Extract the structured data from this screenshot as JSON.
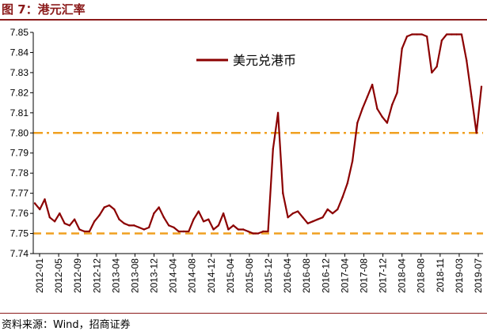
{
  "figure": {
    "title": "图 7：港元汇率",
    "source": "资料来源：Wind，招商证券"
  },
  "colors": {
    "series": "#8B0000",
    "ref_line": "#F0A020",
    "title": "#8B1A1A"
  },
  "chart_data": {
    "type": "line",
    "title": "",
    "xlabel": "",
    "ylabel": "",
    "ylim": [
      7.74,
      7.85
    ],
    "yticks": [
      "7.85",
      "7.84",
      "7.83",
      "7.82",
      "7.81",
      "7.80",
      "7.79",
      "7.78",
      "7.77",
      "7.76",
      "7.75",
      "7.74"
    ],
    "xticks": [
      "2012-01",
      "2012-05",
      "2012-09",
      "2012-12",
      "2013-04",
      "2013-08",
      "2013-12",
      "2014-04",
      "2014-08",
      "2014-12",
      "2015-04",
      "2015-08",
      "2015-12",
      "2016-04",
      "2016-08",
      "2016-12",
      "2017-04",
      "2017-08",
      "2017-12",
      "2018-04",
      "2018-08",
      "2018-11",
      "2019-03",
      "2019-07"
    ],
    "legend": {
      "position": "top-center"
    },
    "series": [
      {
        "name": "美元兑港币",
        "x": [
          "2012-01",
          "2012-02",
          "2012-03",
          "2012-04",
          "2012-05",
          "2012-06",
          "2012-07",
          "2012-08",
          "2012-09",
          "2012-10",
          "2012-11",
          "2012-12",
          "2013-01",
          "2013-02",
          "2013-03",
          "2013-04",
          "2013-05",
          "2013-06",
          "2013-07",
          "2013-08",
          "2013-09",
          "2013-10",
          "2013-11",
          "2013-12",
          "2014-01",
          "2014-02",
          "2014-03",
          "2014-04",
          "2014-05",
          "2014-06",
          "2014-07",
          "2014-08",
          "2014-09",
          "2014-10",
          "2014-11",
          "2014-12",
          "2015-01",
          "2015-02",
          "2015-03",
          "2015-04",
          "2015-05",
          "2015-06",
          "2015-07",
          "2015-08",
          "2015-09",
          "2015-10",
          "2015-11",
          "2015-12",
          "2016-01",
          "2016-02",
          "2016-03",
          "2016-04",
          "2016-05",
          "2016-06",
          "2016-07",
          "2016-08",
          "2016-09",
          "2016-10",
          "2016-11",
          "2016-12",
          "2017-01",
          "2017-02",
          "2017-03",
          "2017-04",
          "2017-05",
          "2017-06",
          "2017-07",
          "2017-08",
          "2017-09",
          "2017-10",
          "2017-11",
          "2017-12",
          "2018-01",
          "2018-02",
          "2018-03",
          "2018-04",
          "2018-05",
          "2018-06",
          "2018-07",
          "2018-08",
          "2018-09",
          "2018-10",
          "2018-11",
          "2018-12",
          "2019-01",
          "2019-02",
          "2019-03",
          "2019-04",
          "2019-05",
          "2019-06",
          "2019-07"
        ],
        "values": [
          7.765,
          7.762,
          7.767,
          7.758,
          7.756,
          7.76,
          7.755,
          7.754,
          7.757,
          7.752,
          7.751,
          7.751,
          7.756,
          7.759,
          7.763,
          7.764,
          7.762,
          7.757,
          7.755,
          7.754,
          7.754,
          7.753,
          7.752,
          7.753,
          7.76,
          7.763,
          7.758,
          7.754,
          7.753,
          7.751,
          7.751,
          7.751,
          7.757,
          7.761,
          7.756,
          7.757,
          7.752,
          7.754,
          7.76,
          7.752,
          7.754,
          7.752,
          7.752,
          7.751,
          7.75,
          7.75,
          7.751,
          7.751,
          7.792,
          7.81,
          7.77,
          7.758,
          7.76,
          7.761,
          7.758,
          7.755,
          7.756,
          7.757,
          7.758,
          7.762,
          7.76,
          7.762,
          7.768,
          7.775,
          7.786,
          7.805,
          7.812,
          7.818,
          7.824,
          7.812,
          7.808,
          7.805,
          7.814,
          7.82,
          7.842,
          7.848,
          7.849,
          7.849,
          7.849,
          7.848,
          7.83,
          7.833,
          7.846,
          7.849,
          7.849,
          7.849,
          7.849,
          7.836,
          7.818,
          7.8,
          7.823
        ]
      }
    ],
    "reference_lines": [
      {
        "y": 7.8,
        "style": "dash-dot"
      },
      {
        "y": 7.75,
        "style": "dashed"
      }
    ]
  }
}
